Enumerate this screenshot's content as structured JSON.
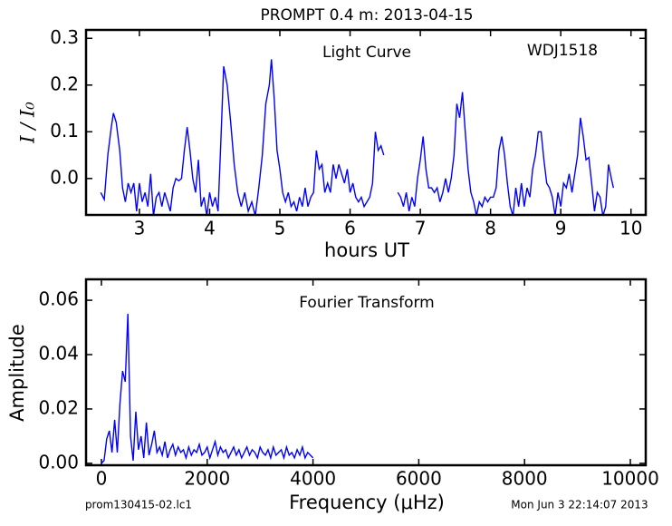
{
  "chart_data": [
    {
      "type": "line",
      "title": "PROMPT 0.4 m:  2013-04-15",
      "annotations": [
        "Light Curve",
        "WDJ1518"
      ],
      "xlabel": "hours UT",
      "ylabel": "I / I₀",
      "xlim": [
        2.24,
        10.21
      ],
      "ylim": [
        -0.078,
        0.318
      ],
      "xticks": [
        3,
        4,
        5,
        6,
        7,
        8,
        9,
        10
      ],
      "yticks": [
        {
          "value": 0,
          "label": "0.0"
        },
        0.1,
        0.2,
        0.3
      ],
      "series": [
        {
          "name": "Light Curve",
          "color": "#0000ff",
          "x": [
            2.45,
            2.5,
            2.55,
            2.6,
            2.63,
            2.67,
            2.72,
            2.76,
            2.8,
            2.84,
            2.88,
            2.92,
            2.96,
            3.0,
            3.04,
            3.08,
            3.12,
            3.16,
            3.2,
            3.24,
            3.28,
            3.32,
            3.36,
            3.4,
            3.44,
            3.48,
            3.52,
            3.56,
            3.6,
            3.64,
            3.68,
            3.72,
            3.76,
            3.8,
            3.84,
            3.88,
            3.92,
            3.96,
            4.0,
            4.04,
            4.08,
            4.12,
            4.16,
            4.2,
            4.25,
            4.3,
            4.35,
            4.4,
            4.45,
            4.5,
            4.55,
            4.6,
            4.65,
            4.7,
            4.75,
            4.8,
            4.85,
            4.88,
            4.92,
            4.96,
            5.0,
            5.04,
            5.08,
            5.12,
            5.16,
            5.2,
            5.24,
            5.28,
            5.32,
            5.36,
            5.4,
            5.44,
            5.48,
            5.52,
            5.56,
            5.6,
            5.64,
            5.68,
            5.72,
            5.76,
            5.8,
            5.84,
            5.88,
            5.92,
            5.96,
            6.0,
            6.04,
            6.08,
            6.12,
            6.16,
            6.2,
            6.24,
            6.28,
            6.32,
            6.36,
            6.4,
            6.44,
            6.48,
            6.58,
            6.68,
            6.72,
            6.76,
            6.8,
            6.84,
            6.88,
            6.92,
            6.96,
            7.0,
            7.04,
            7.08,
            7.12,
            7.16,
            7.2,
            7.24,
            7.28,
            7.32,
            7.36,
            7.4,
            7.44,
            7.48,
            7.52,
            7.56,
            7.6,
            7.64,
            7.68,
            7.72,
            7.76,
            7.8,
            7.84,
            7.88,
            7.92,
            7.96,
            8.0,
            8.04,
            8.08,
            8.12,
            8.16,
            8.2,
            8.24,
            8.28,
            8.32,
            8.36,
            8.4,
            8.44,
            8.48,
            8.52,
            8.56,
            8.6,
            8.64,
            8.68,
            8.72,
            8.76,
            8.8,
            8.84,
            8.88,
            8.92,
            8.96,
            9.0,
            9.04,
            9.08,
            9.12,
            9.16,
            9.2,
            9.24,
            9.28,
            9.32,
            9.36,
            9.4,
            9.44,
            9.48,
            9.52,
            9.56,
            9.6,
            9.64,
            9.68,
            9.72,
            9.75
          ],
          "values": [
            -0.03,
            -0.045,
            0.05,
            0.11,
            0.14,
            0.12,
            0.06,
            -0.02,
            -0.05,
            -0.01,
            -0.03,
            -0.01,
            -0.07,
            -0.01,
            -0.05,
            -0.03,
            -0.06,
            0.01,
            -0.08,
            -0.04,
            -0.03,
            -0.06,
            -0.03,
            -0.05,
            -0.07,
            -0.02,
            0.0,
            -0.005,
            0.0,
            0.06,
            0.11,
            0.06,
            0.0,
            -0.03,
            0.04,
            -0.06,
            -0.04,
            -0.08,
            -0.03,
            -0.06,
            -0.04,
            -0.07,
            0.08,
            0.24,
            0.2,
            0.12,
            0.03,
            -0.03,
            -0.06,
            -0.03,
            -0.07,
            -0.05,
            -0.08,
            -0.02,
            0.05,
            0.16,
            0.2,
            0.255,
            0.17,
            0.06,
            0.02,
            -0.03,
            -0.05,
            -0.03,
            -0.06,
            -0.05,
            -0.07,
            -0.04,
            -0.06,
            -0.02,
            -0.06,
            -0.04,
            -0.03,
            0.06,
            0.02,
            0.03,
            -0.03,
            -0.01,
            -0.03,
            0.03,
            0.0,
            0.03,
            0.01,
            -0.01,
            0.02,
            -0.03,
            -0.01,
            -0.04,
            -0.05,
            -0.04,
            -0.06,
            -0.05,
            -0.04,
            -0.01,
            0.1,
            0.06,
            0.07,
            0.05,
            null,
            -0.03,
            -0.04,
            -0.06,
            -0.03,
            -0.07,
            -0.04,
            -0.06,
            0.0,
            0.04,
            0.09,
            0.02,
            -0.02,
            -0.02,
            -0.03,
            -0.02,
            -0.05,
            -0.03,
            0.0,
            -0.03,
            0.0,
            0.05,
            0.16,
            0.13,
            0.185,
            0.1,
            0.02,
            -0.03,
            -0.05,
            -0.08,
            -0.05,
            -0.06,
            -0.04,
            -0.05,
            -0.04,
            -0.04,
            -0.02,
            0.06,
            0.09,
            0.05,
            -0.01,
            -0.06,
            -0.08,
            -0.02,
            -0.06,
            -0.01,
            -0.06,
            -0.02,
            -0.04,
            0.02,
            0.05,
            0.1,
            0.1,
            0.04,
            -0.01,
            -0.02,
            -0.04,
            -0.08,
            -0.03,
            -0.06,
            -0.01,
            -0.02,
            0.01,
            -0.03,
            0.01,
            0.05,
            0.13,
            0.09,
            0.04,
            0.045,
            -0.01,
            -0.07,
            -0.03,
            -0.04,
            -0.08,
            -0.06,
            0.03,
            0.0,
            -0.02
          ]
        }
      ]
    },
    {
      "type": "line",
      "annotations": [
        "Fourier Transform"
      ],
      "xlabel": "Frequency (μHz)",
      "ylabel": "Amplitude",
      "xlim": [
        -291,
        10291
      ],
      "ylim": [
        -0.0007,
        0.0677
      ],
      "xticks": [
        0,
        2000,
        4000,
        6000,
        8000,
        10000
      ],
      "yticks": [
        {
          "value": 0,
          "label": "0.00"
        },
        {
          "value": 0.02,
          "label": "0.02"
        },
        {
          "value": 0.04,
          "label": "0.04"
        },
        {
          "value": 0.06,
          "label": "0.06"
        }
      ],
      "series": [
        {
          "name": "Fourier Transform",
          "color": "#0000ff",
          "x": [
            0,
            50,
            100,
            150,
            200,
            250,
            300,
            350,
            400,
            450,
            500,
            550,
            600,
            650,
            700,
            750,
            800,
            850,
            900,
            950,
            1000,
            1050,
            1100,
            1150,
            1200,
            1250,
            1300,
            1350,
            1400,
            1450,
            1500,
            1550,
            1600,
            1650,
            1700,
            1750,
            1800,
            1850,
            1900,
            1950,
            2000,
            2050,
            2100,
            2150,
            2200,
            2250,
            2300,
            2350,
            2400,
            2450,
            2500,
            2550,
            2600,
            2650,
            2700,
            2750,
            2800,
            2850,
            2900,
            2950,
            3000,
            3050,
            3100,
            3150,
            3200,
            3250,
            3300,
            3350,
            3400,
            3450,
            3500,
            3550,
            3600,
            3650,
            3700,
            3750,
            3800,
            3850,
            3900,
            3950,
            4000
          ],
          "values": [
            0,
            0.001,
            0.009,
            0.012,
            0.004,
            0.016,
            0.004,
            0.022,
            0.034,
            0.03,
            0.055,
            0.01,
            0.001,
            0.019,
            0.005,
            0.01,
            0.002,
            0.015,
            0.003,
            0.007,
            0.012,
            0.004,
            0.006,
            0.003,
            0.008,
            0.002,
            0.005,
            0.007,
            0.003,
            0.006,
            0.004,
            0.005,
            0.002,
            0.006,
            0.003,
            0.005,
            0.004,
            0.007,
            0.003,
            0.004,
            0.006,
            0.002,
            0.005,
            0.008,
            0.003,
            0.006,
            0.004,
            0.005,
            0.002,
            0.004,
            0.006,
            0.003,
            0.005,
            0.002,
            0.004,
            0.006,
            0.003,
            0.005,
            0.004,
            0.002,
            0.006,
            0.004,
            0.003,
            0.005,
            0.002,
            0.006,
            0.003,
            0.004,
            0.005,
            0.002,
            0.006,
            0.003,
            0.004,
            0.002,
            0.005,
            0.003,
            0.006,
            0.002,
            0.004,
            0.003,
            0.002
          ]
        }
      ]
    }
  ],
  "footer": {
    "left": "prom130415-02.lc1",
    "right": "Mon Jun  3 22:14:07 2013"
  }
}
